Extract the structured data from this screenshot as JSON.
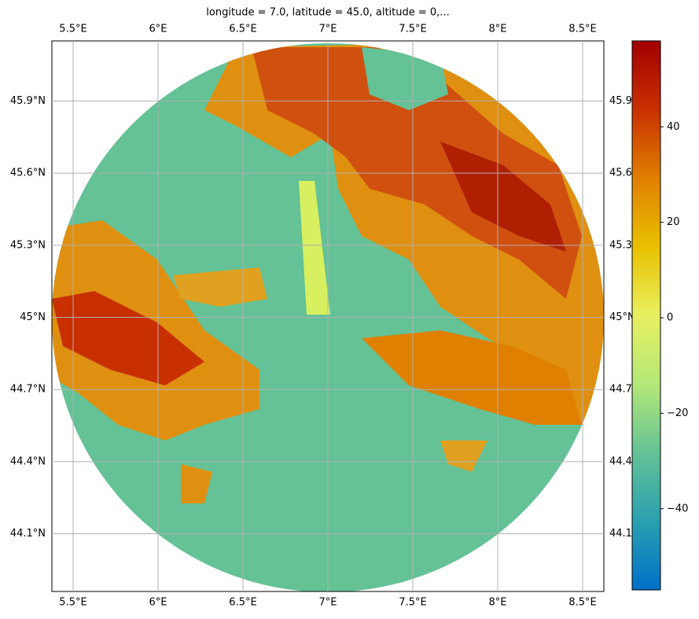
{
  "chart_data": {
    "type": "radar-map",
    "title": "longitude = 7.0, latitude = 45.0, altitude = 0,...",
    "xlim": [
      5.375,
      8.625
    ],
    "ylim": [
      43.86,
      46.15
    ],
    "xticks": [
      {
        "value": 5.5,
        "label": "5.5°E"
      },
      {
        "value": 6,
        "label": "6°E"
      },
      {
        "value": 6.5,
        "label": "6.5°E"
      },
      {
        "value": 7,
        "label": "7°E"
      },
      {
        "value": 7.5,
        "label": "7.5°E"
      },
      {
        "value": 8,
        "label": "8°E"
      },
      {
        "value": 8.5,
        "label": "8.5°E"
      }
    ],
    "yticks": [
      {
        "value": 44.1,
        "label": "44.1°N"
      },
      {
        "value": 44.4,
        "label": "44.4°N"
      },
      {
        "value": 44.7,
        "label": "44.7°N"
      },
      {
        "value": 45,
        "label": "45°N"
      },
      {
        "value": 45.3,
        "label": "45.3°N"
      },
      {
        "value": 45.6,
        "label": "45.6°N"
      },
      {
        "value": 45.9,
        "label": "45.9°N"
      }
    ],
    "grid": true,
    "colorbar": {
      "clim": [
        -57,
        58
      ],
      "ticks": [
        {
          "value": -40,
          "label": "−40"
        },
        {
          "value": -20,
          "label": "−20"
        },
        0,
        20,
        40
      ],
      "colors": [
        "#0070c8",
        "#2aa0b0",
        "#64c296",
        "#b4e878",
        "#e8f060",
        "#e8c000",
        "#e08000",
        "#c83000",
        "#a00000"
      ]
    }
  }
}
